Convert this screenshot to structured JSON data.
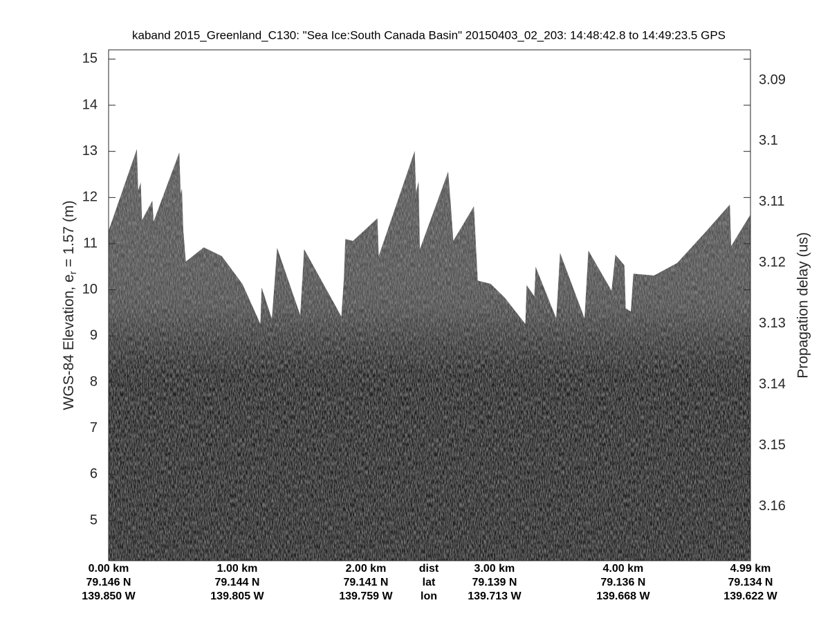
{
  "chart_data": {
    "type": "area",
    "title": "kaband 2015_Greenland_C130: \"Sea Ice:South Canada Basin\"  20150403_02_203: 14:48:42.8 to 14:49:23.5 GPS",
    "ylabel": [
      "WGS-84 Elevation, e",
      "r",
      " = 1.57 (m)"
    ],
    "y2label": "Propagation delay (us)",
    "row_labels": [
      "dist",
      "lat",
      "lon"
    ],
    "x": [
      0.0,
      0.22,
      0.23,
      0.25,
      0.26,
      0.34,
      0.35,
      0.55,
      0.56,
      0.57,
      0.58,
      0.6,
      0.74,
      0.88,
      1.04,
      1.18,
      1.19,
      1.26,
      1.27,
      1.31,
      1.49,
      1.52,
      1.81,
      1.83,
      1.84,
      1.9,
      2.09,
      2.1,
      2.38,
      2.39,
      2.41,
      2.42,
      2.64,
      2.66,
      2.68,
      2.84,
      2.87,
      2.97,
      3.08,
      3.24,
      3.25,
      3.31,
      3.32,
      3.48,
      3.51,
      3.7,
      3.73,
      3.91,
      3.94,
      4.01,
      4.02,
      4.06,
      4.08,
      4.24,
      4.42,
      4.64,
      4.83,
      4.84,
      4.99
    ],
    "values": [
      11.28,
      13.05,
      12.15,
      12.33,
      11.51,
      11.93,
      11.48,
      12.98,
      12.08,
      12.2,
      11.33,
      10.61,
      10.92,
      10.73,
      10.13,
      9.26,
      10.05,
      9.45,
      9.38,
      10.91,
      9.45,
      10.88,
      9.42,
      10.28,
      11.1,
      11.06,
      11.55,
      10.73,
      13.01,
      12.11,
      12.35,
      10.88,
      12.56,
      11.85,
      11.06,
      11.81,
      10.2,
      10.13,
      9.83,
      9.26,
      10.1,
      9.86,
      10.5,
      9.38,
      10.8,
      9.38,
      10.85,
      9.98,
      10.76,
      10.53,
      9.6,
      9.53,
      10.35,
      10.31,
      10.58,
      11.25,
      11.85,
      10.95,
      11.63
    ],
    "xlim": [
      0,
      4.99
    ],
    "xticks": [
      {
        "value": 0,
        "label": "0.00 km"
      },
      {
        "value": 1,
        "label": "1.00 km"
      },
      {
        "value": 2,
        "label": "2.00 km"
      },
      {
        "value": 3,
        "label": "3.00 km"
      },
      {
        "value": 4,
        "label": "4.00 km"
      },
      {
        "value": 4.99,
        "label": "4.99 km"
      }
    ],
    "lat_labels": [
      "79.146 N",
      "79.144 N",
      "79.141 N",
      "79.139 N",
      "79.136 N",
      "79.134 N"
    ],
    "lon_labels": [
      "139.850 W",
      "139.805 W",
      "139.759 W",
      "139.713 W",
      "139.668 W",
      "139.622 W"
    ],
    "ylim": [
      4.13,
      15.2
    ],
    "yticks": [
      5,
      6,
      7,
      8,
      9,
      10,
      11,
      12,
      13,
      14,
      15
    ],
    "y2lim": [
      3.085,
      3.1689
    ],
    "y2ticks": [
      3.09,
      3.1,
      3.11,
      3.12,
      3.13,
      3.14,
      3.15,
      3.16
    ]
  }
}
